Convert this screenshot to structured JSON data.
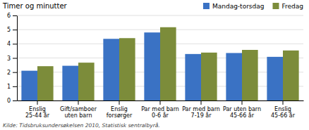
{
  "chart_data": {
    "type": "bar",
    "ylabel": "Timer og minutter",
    "source": "Kilde: Tidsbruksundersøkelsen 2010, Statistisk sentralbyrå.",
    "categories": [
      "Enslig\n25-44 år",
      "Gift/samboer\nuten barn",
      "Enslig\nforsørger",
      "Par med barn\n0-6 år",
      "Par med barn\n7-19 år",
      "Par uten barn\n45-66 år",
      "Enslig\n45-66 år"
    ],
    "series": [
      {
        "name": "Mandag-torsdag",
        "color": "#3a72c4",
        "values": [
          2.1,
          2.45,
          4.35,
          4.8,
          3.28,
          3.35,
          3.08
        ]
      },
      {
        "name": "Fredag",
        "color": "#7c8c3a",
        "values": [
          2.42,
          2.67,
          4.4,
          5.17,
          3.38,
          3.57,
          3.53
        ]
      }
    ],
    "ylim": [
      0,
      6
    ],
    "yticks": [
      0,
      1,
      2,
      3,
      4,
      5,
      6
    ],
    "grid": true,
    "legend": "upper right"
  }
}
